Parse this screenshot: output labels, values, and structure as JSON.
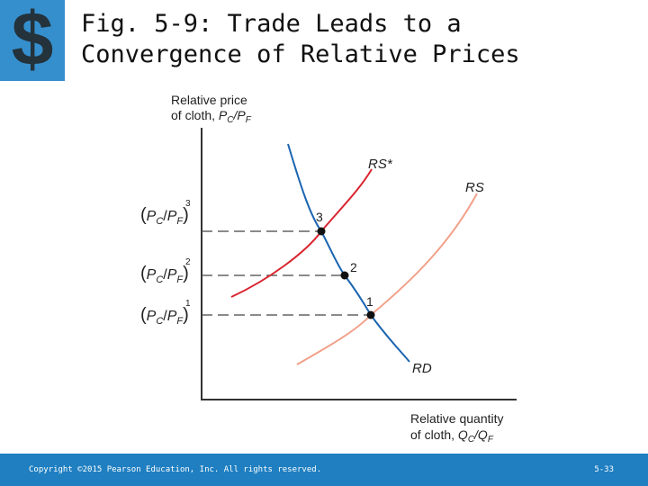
{
  "title": {
    "line1": "Fig. 5-9:  Trade Leads to a",
    "line2": "Convergence of Relative Prices"
  },
  "axes": {
    "y_label_line1": "Relative price",
    "y_label_line2": "of cloth, ",
    "y_label_var": "P",
    "y_label_sub1": "C",
    "y_label_slash": "/P",
    "y_label_sub2": "F",
    "x_label_line1": "Relative quantity",
    "x_label_line2": "of cloth, ",
    "x_label_var": "Q",
    "x_label_sub1": "C",
    "x_label_slash": "/Q",
    "x_label_sub2": "F"
  },
  "price_levels": [
    {
      "open": "(",
      "p": "P",
      "c": "C",
      "slash": "/",
      "p2": "P",
      "f": "F",
      "close": ")",
      "sup": "3"
    },
    {
      "open": "(",
      "p": "P",
      "c": "C",
      "slash": "/",
      "p2": "P",
      "f": "F",
      "close": ")",
      "sup": "2"
    },
    {
      "open": "(",
      "p": "P",
      "c": "C",
      "slash": "/",
      "p2": "P",
      "f": "F",
      "close": ")",
      "sup": "1"
    }
  ],
  "curves": {
    "rs_star": "RS*",
    "rs": "RS",
    "rd": "RD"
  },
  "points": [
    "3",
    "2",
    "1"
  ],
  "colors": {
    "rs_star": "#d8252f",
    "rs": "#f2a08a",
    "rd": "#1a64b0",
    "footer": "#1f7fc1"
  },
  "footer": {
    "copyright": "Copyright ©2015 Pearson Education, Inc. All rights reserved.",
    "slide_number": "5-33"
  },
  "logo": {
    "icon": "dollar-sign-icon"
  }
}
